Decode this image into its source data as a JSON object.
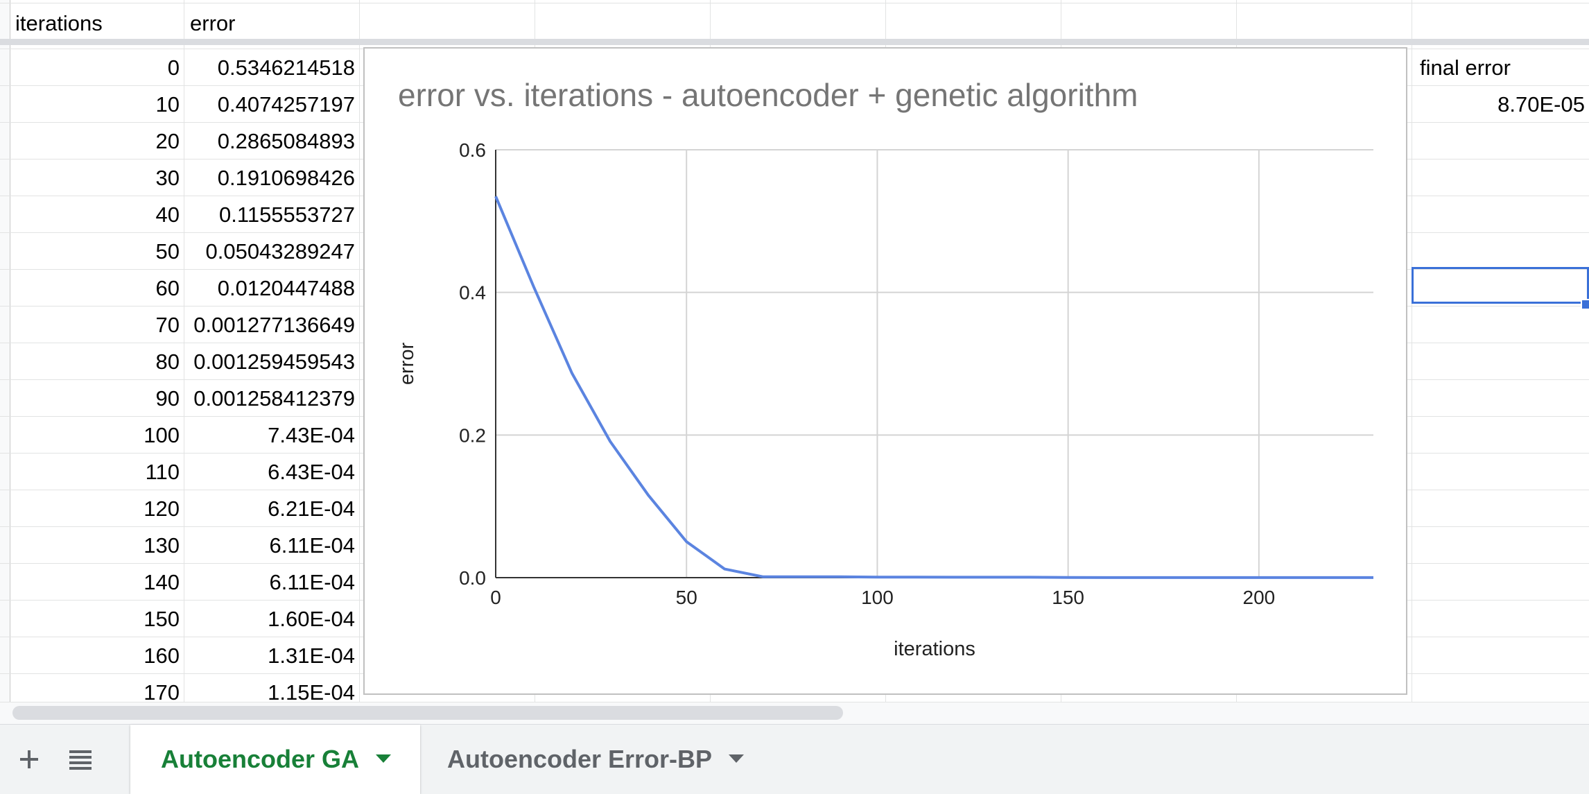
{
  "headers": {
    "iterations": "iterations",
    "error": "error"
  },
  "rows": [
    {
      "iterations": "0",
      "error": "0.5346214518"
    },
    {
      "iterations": "10",
      "error": "0.4074257197"
    },
    {
      "iterations": "20",
      "error": "0.2865084893"
    },
    {
      "iterations": "30",
      "error": "0.1910698426"
    },
    {
      "iterations": "40",
      "error": "0.1155553727"
    },
    {
      "iterations": "50",
      "error": "0.05043289247"
    },
    {
      "iterations": "60",
      "error": "0.0120447488"
    },
    {
      "iterations": "70",
      "error": "0.001277136649"
    },
    {
      "iterations": "80",
      "error": "0.001259459543"
    },
    {
      "iterations": "90",
      "error": "0.001258412379"
    },
    {
      "iterations": "100",
      "error": "7.43E-04"
    },
    {
      "iterations": "110",
      "error": "6.43E-04"
    },
    {
      "iterations": "120",
      "error": "6.21E-04"
    },
    {
      "iterations": "130",
      "error": "6.11E-04"
    },
    {
      "iterations": "140",
      "error": "6.11E-04"
    },
    {
      "iterations": "150",
      "error": "1.60E-04"
    },
    {
      "iterations": "160",
      "error": "1.31E-04"
    },
    {
      "iterations": "170",
      "error": "1.15E-04"
    }
  ],
  "summary": {
    "label": "final error",
    "value": "8.70E-05"
  },
  "chart_data": {
    "type": "line",
    "title": "error vs. iterations - autoencoder + genetic algorithm",
    "xlabel": "iterations",
    "ylabel": "error",
    "xlim": [
      0,
      230
    ],
    "ylim": [
      0,
      0.6
    ],
    "xticks": [
      "0",
      "50",
      "100",
      "150",
      "200"
    ],
    "xtick_values": [
      0,
      50,
      100,
      150,
      200
    ],
    "yticks": [
      "0.0",
      "0.2",
      "0.4",
      "0.6"
    ],
    "ytick_values": [
      0,
      0.2,
      0.4,
      0.6
    ],
    "grid": true,
    "line_color": "#5b84e0",
    "x": [
      0,
      10,
      20,
      30,
      40,
      50,
      60,
      70,
      80,
      90,
      100,
      110,
      120,
      130,
      140,
      150,
      160,
      170,
      180,
      190,
      200,
      210,
      220,
      230
    ],
    "y": [
      0.5346214518,
      0.4074257197,
      0.2865084893,
      0.1910698426,
      0.1155553727,
      0.05043289247,
      0.0120447488,
      0.001277136649,
      0.001259459543,
      0.001258412379,
      0.000743,
      0.000643,
      0.000621,
      0.000611,
      0.000611,
      0.00016,
      0.000131,
      0.000115,
      0.0001,
      0.0001,
      9e-05,
      9e-05,
      8.7e-05,
      8.7e-05
    ]
  },
  "tabs": {
    "add_icon": "plus-icon",
    "list_icon": "menu-list-icon",
    "active_label": "Autoencoder GA",
    "inactive_label": "Autoencoder Error-BP"
  },
  "colors": {
    "accent_green": "#188038",
    "selection_blue": "#3a70d8"
  }
}
